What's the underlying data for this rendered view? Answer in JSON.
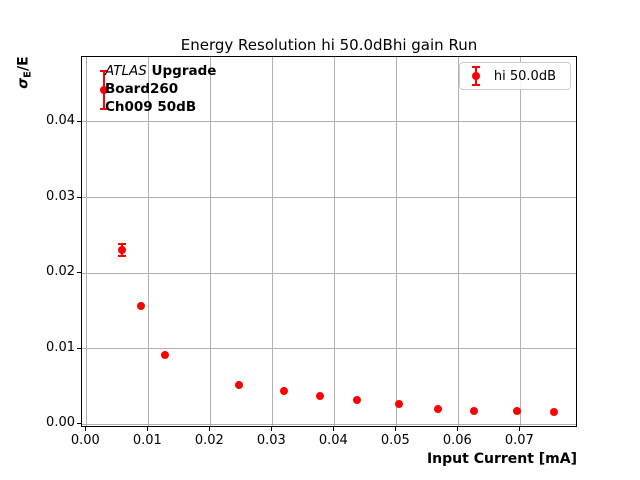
{
  "title": "Energy Resolution hi 50.0dBhi gain Run",
  "axes": {
    "xlabel": "Input Current [mA]",
    "ylabel_sigma": "σ",
    "ylabel_sub": "E",
    "ylabel_rest": "/E"
  },
  "annotation": {
    "experiment": "ATLAS",
    "line1_bold": "Upgrade",
    "line2": "Board260",
    "line3": "Ch009 50dB"
  },
  "legend": {
    "label": "hi 50.0dB"
  },
  "colors": {
    "series": "#ff0000",
    "grid": "#b0b0b0",
    "legend_border": "#cccccc",
    "text": "#000000"
  },
  "chart_data": {
    "type": "scatter",
    "title": "Energy Resolution hi 50.0dBhi gain Run",
    "xlabel": "Input Current [mA]",
    "ylabel": "σ_E/E",
    "xlim": [
      -0.0007,
      0.0793
    ],
    "ylim": [
      -0.0005,
      0.0486
    ],
    "x_ticks": [
      0.0,
      0.01,
      0.02,
      0.03,
      0.04,
      0.05,
      0.06,
      0.07
    ],
    "x_tick_labels": [
      "0.00",
      "0.01",
      "0.02",
      "0.03",
      "0.04",
      "0.05",
      "0.06",
      "0.07"
    ],
    "y_ticks": [
      0.0,
      0.01,
      0.02,
      0.03,
      0.04
    ],
    "y_tick_labels": [
      "0.00",
      "0.01",
      "0.02",
      "0.03",
      "0.04"
    ],
    "grid": true,
    "legend_position": "upper right",
    "series": [
      {
        "name": "hi 50.0dB",
        "color": "#ff0000",
        "marker": "o",
        "x": [
          0.0029,
          0.0058,
          0.0088,
          0.0127,
          0.0247,
          0.0318,
          0.0377,
          0.0437,
          0.0505,
          0.0567,
          0.0626,
          0.0695,
          0.0755
        ],
        "y": [
          0.0442,
          0.0231,
          0.0157,
          0.0092,
          0.0052,
          0.0044,
          0.0037,
          0.0032,
          0.0027,
          0.002,
          0.0018,
          0.0017,
          0.0016
        ],
        "yerr": [
          0.0025,
          0.0008,
          0.0003,
          0.0003,
          0.0003,
          0.0002,
          0.0002,
          0.0002,
          0.0002,
          0.0002,
          0.0002,
          0.0002,
          0.0002
        ]
      }
    ]
  }
}
